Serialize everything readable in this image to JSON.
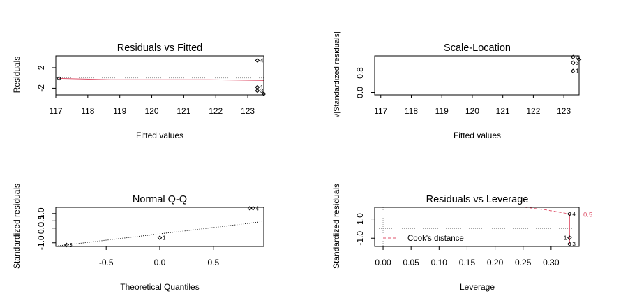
{
  "chart_data": [
    {
      "type": "scatter",
      "title": "Residuals vs Fitted",
      "xlabel": "Fitted values",
      "ylabel": "Residuals",
      "xlim": [
        117,
        123.5
      ],
      "ylim": [
        -3.3,
        4.3
      ],
      "xticks": [
        117,
        118,
        119,
        120,
        121,
        122,
        123
      ],
      "yticks": [
        -2,
        2
      ],
      "points": [
        {
          "x": 117.1,
          "y": -0.1
        },
        {
          "x": 123.3,
          "y": 3.4,
          "label": "4"
        },
        {
          "x": 123.3,
          "y": -1.8,
          "label": "1"
        },
        {
          "x": 123.3,
          "y": -2.5,
          "label": "3"
        },
        {
          "x": 123.5,
          "y": -3.1
        }
      ],
      "reference_line": {
        "y": 0
      },
      "smoother": [
        [
          117.1,
          -0.1
        ],
        [
          118.7,
          -0.35
        ],
        [
          121.8,
          -0.35
        ],
        [
          123.5,
          -0.5
        ]
      ],
      "colors": {
        "points": "#000000",
        "smoother": "#DF536B",
        "reference": "#999999"
      }
    },
    {
      "type": "scatter",
      "title": "Scale-Location",
      "xlabel": "Fitted values",
      "ylabel": "√|Standardized residuals|",
      "xlim": [
        116.8,
        123.5
      ],
      "ylim": [
        -0.1,
        1.5
      ],
      "xticks": [
        117,
        118,
        119,
        120,
        121,
        122,
        123
      ],
      "yticks": [
        0.0,
        0.8
      ],
      "yticklabels": [
        "0.0",
        "0.8"
      ],
      "points": [
        {
          "x": 123.3,
          "y": 1.45,
          "label": "4"
        },
        {
          "x": 123.3,
          "y": 1.22,
          "label": "3"
        },
        {
          "x": 123.3,
          "y": 0.88,
          "label": "1"
        },
        {
          "x": 123.5,
          "y": 1.35
        }
      ],
      "colors": {
        "points": "#000000"
      }
    },
    {
      "type": "scatter",
      "title": "Normal Q-Q",
      "xlabel": "Theoretical Quantiles",
      "ylabel": "Standardized residuals",
      "xlim": [
        -0.97,
        0.97
      ],
      "ylim": [
        -1.25,
        1.42
      ],
      "xticks": [
        -0.5,
        0.0,
        0.5
      ],
      "xticklabels": [
        "-0.5",
        "0.0",
        "0.5"
      ],
      "yticks": [
        -1.0,
        0.0,
        0.5,
        1.0
      ],
      "yticklabels": [
        "-1.0",
        "0.0",
        "0.5",
        "1.0"
      ],
      "points": [
        {
          "x": -0.87,
          "y": -1.15,
          "label": "3"
        },
        {
          "x": 0.0,
          "y": -0.66,
          "label": "1"
        },
        {
          "x": 0.84,
          "y": 1.36
        },
        {
          "x": 0.87,
          "y": 1.36,
          "label": "4"
        }
      ],
      "reference_line": [
        [
          -0.97,
          -1.23
        ],
        [
          0.97,
          0.45
        ]
      ],
      "colors": {
        "points": "#000000",
        "reference": "#000000"
      }
    },
    {
      "type": "scatter",
      "title": "Residuals vs Leverage",
      "xlabel": "Leverage",
      "ylabel": "Standardized residuals",
      "xlim": [
        -0.015,
        0.35
      ],
      "ylim": [
        -1.85,
        2.2
      ],
      "xticks": [
        0.0,
        0.05,
        0.1,
        0.15,
        0.2,
        0.25,
        0.3
      ],
      "xticklabels": [
        "0.00",
        "0.05",
        "0.10",
        "0.15",
        "0.20",
        "0.25",
        "0.30"
      ],
      "yticks": [
        -1.0,
        1.0
      ],
      "yticklabels": [
        "-1.0",
        "1.0"
      ],
      "points": [
        {
          "x": 0.333,
          "y": 1.52,
          "label": "4"
        },
        {
          "x": 0.333,
          "y": -0.95,
          "label": "1"
        },
        {
          "x": 0.333,
          "y": -1.6,
          "label": "3"
        }
      ],
      "smoother": [
        [
          0.333,
          1.52
        ],
        [
          0.333,
          -1.6
        ]
      ],
      "cooks_contour": [
        [
          0.253,
          2.2
        ],
        [
          0.29,
          1.95
        ],
        [
          0.333,
          1.52
        ]
      ],
      "contour_label": "0.5",
      "legend": {
        "label": "Cook's distance",
        "position": "bottom-left"
      },
      "colors": {
        "points": "#000000",
        "smoother": "#DF536B",
        "contour": "#DF536B",
        "reference": "#999999"
      }
    }
  ]
}
